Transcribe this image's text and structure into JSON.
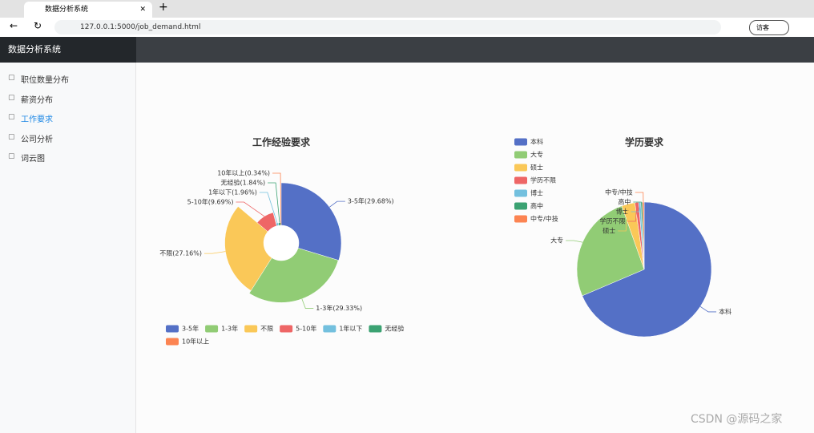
{
  "browser": {
    "tab_title": "数据分析系统",
    "url": "127.0.0.1:5000/job_demand.html",
    "profile": "访客"
  },
  "sidebar": {
    "brand": "数据分析系统",
    "menu": [
      {
        "label": "职位数量分布",
        "active": false
      },
      {
        "label": "薪资分布",
        "active": false
      },
      {
        "label": "工作要求",
        "active": true
      },
      {
        "label": "公司分析",
        "active": false
      },
      {
        "label": "词云图",
        "active": false
      }
    ]
  },
  "chart_data": [
    {
      "type": "pie",
      "rose": true,
      "title": "工作经验要求",
      "legend": "bottom",
      "categories": [
        "3-5年",
        "1-3年",
        "不限",
        "5-10年",
        "1年以下",
        "无经验",
        "10年以上"
      ],
      "values": [
        29.68,
        29.33,
        27.16,
        9.69,
        1.96,
        1.84,
        0.34
      ],
      "value_labels": [
        "3-5年(29.68%)",
        "1-3年(29.33%)",
        "不限(27.16%)",
        "5-10年(9.69%)",
        "1年以下(1.96%)",
        "无经验(1.84%)",
        "10年以上(0.34%)"
      ],
      "colors": [
        "#5470c6",
        "#91cc75",
        "#fac858",
        "#ee6666",
        "#73c0de",
        "#3ba272",
        "#fc8452"
      ]
    },
    {
      "type": "pie",
      "rose": false,
      "title": "学历要求",
      "legend": "left-top",
      "categories": [
        "本科",
        "大专",
        "硕士",
        "学历不限",
        "博士",
        "高中",
        "中专/中技"
      ],
      "values": [
        68.6,
        26,
        3.2,
        0.9,
        0.5,
        0.4,
        0.4
      ],
      "colors": [
        "#5470c6",
        "#91cc75",
        "#fac858",
        "#ee6666",
        "#73c0de",
        "#3ba272",
        "#fc8452"
      ]
    }
  ],
  "watermark": "CSDN @源码之家"
}
